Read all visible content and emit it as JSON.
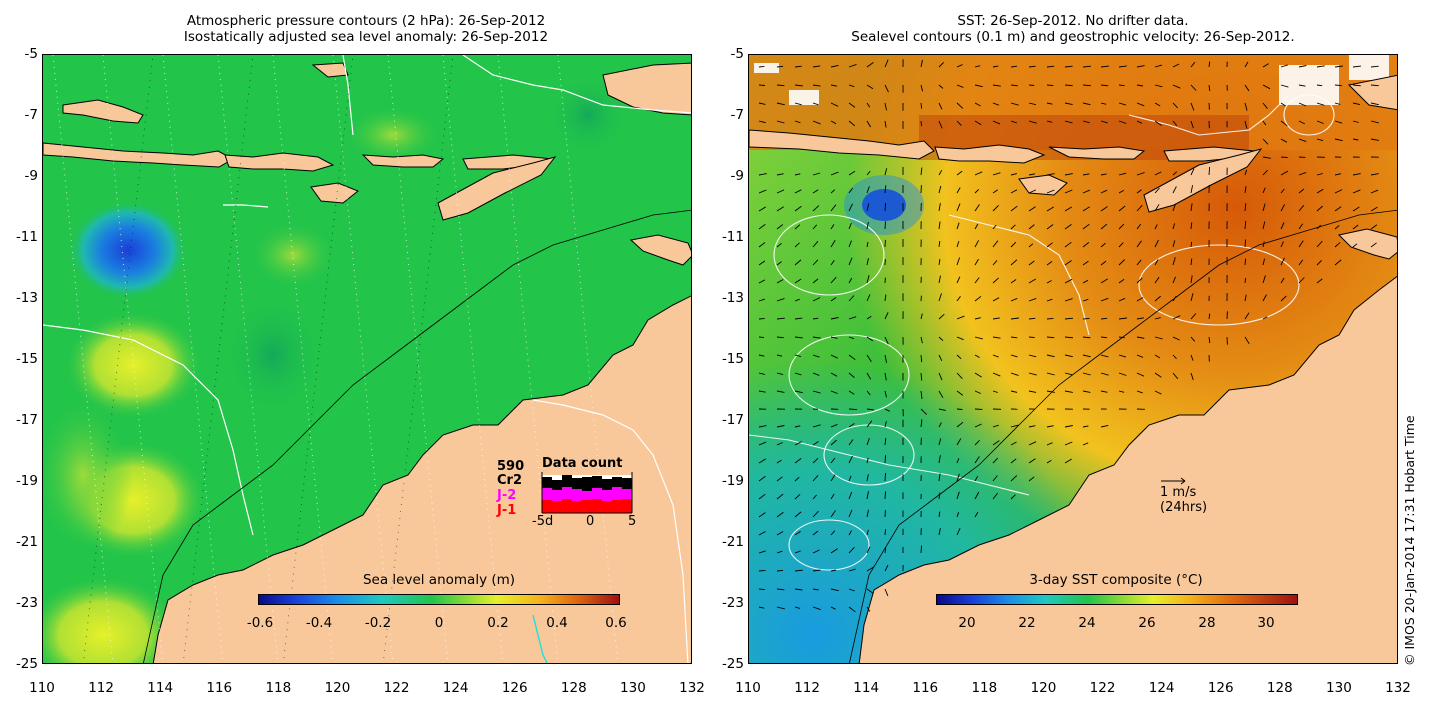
{
  "left_panel": {
    "title_line1": "Atmospheric pressure contours (2 hPa): 26-Sep-2012",
    "title_line2": "Isostatically adjusted sea level anomaly: 26-Sep-2012",
    "colorbar": {
      "label": "Sea level anomaly (m)",
      "ticks": [
        "-0.6",
        "-0.4",
        "-0.2",
        "0",
        "0.2",
        "0.4",
        "0.6"
      ],
      "min": -0.6,
      "max": 0.6
    },
    "data_count": {
      "title": "Data count",
      "total": "590",
      "satellites": [
        {
          "name": "Cr2",
          "color": "#000000"
        },
        {
          "name": "J-2",
          "color": "#ff00ff"
        },
        {
          "name": "J-1",
          "color": "#ff0000"
        }
      ],
      "axis_labels": [
        "-5d",
        "0",
        "5"
      ]
    }
  },
  "right_panel": {
    "title_line1": "SST: 26-Sep-2012. No drifter data.",
    "title_line2": "Sealevel contours (0.1 m) and geostrophic velocity: 26-Sep-2012.",
    "colorbar": {
      "label": "3-day SST composite (°C)",
      "ticks": [
        "20",
        "22",
        "24",
        "26",
        "28",
        "30"
      ],
      "min": 19,
      "max": 31
    },
    "velocity_scale": {
      "line1": "1 m/s",
      "line2": "(24hrs)"
    }
  },
  "axes": {
    "x_ticks": [
      "110",
      "112",
      "114",
      "116",
      "118",
      "120",
      "122",
      "124",
      "126",
      "128",
      "130",
      "132"
    ],
    "y_ticks": [
      "-5",
      "-7",
      "-9",
      "-11",
      "-13",
      "-15",
      "-17",
      "-19",
      "-21",
      "-23",
      "-25"
    ],
    "lon_range": [
      110,
      132
    ],
    "lat_range": [
      -25,
      -5
    ]
  },
  "copyright": "© IMOS 20-Jan-2014 17:31 Hobart Time",
  "colors": {
    "land": "#f9c89a",
    "ocean_anomaly": "#22c44a",
    "sst_warm": "#d96a0a",
    "sst_cool": "#54c83c"
  }
}
